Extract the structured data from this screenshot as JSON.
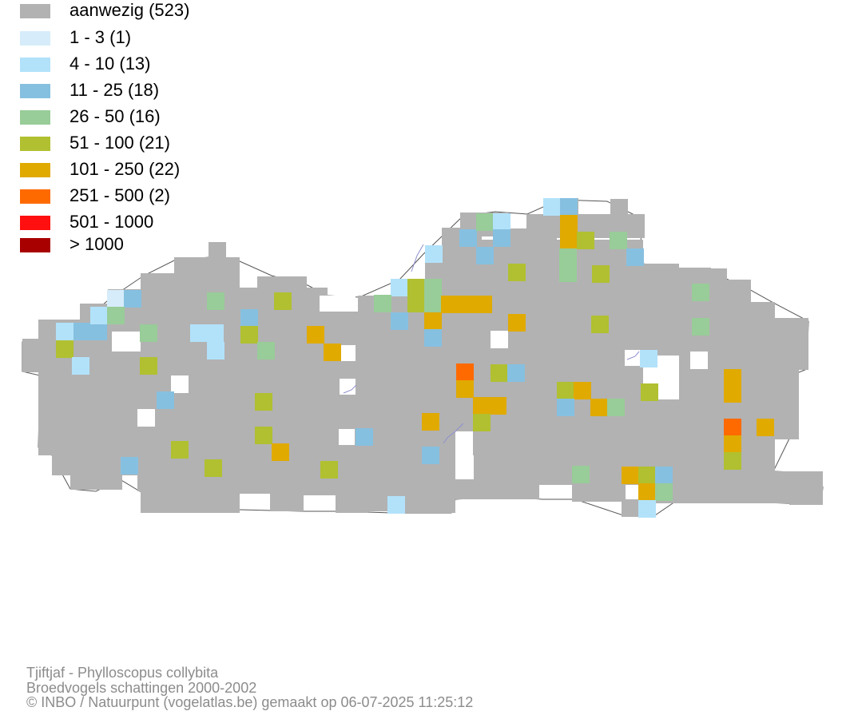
{
  "legend": {
    "items": [
      {
        "label": "aanwezig (523)",
        "color": "#b2b2b2"
      },
      {
        "label": "1 - 3 (1)",
        "color": "#d6ecfa"
      },
      {
        "label": "4 - 10 (13)",
        "color": "#b2e2fa"
      },
      {
        "label": "11 - 25 (18)",
        "color": "#86c0e0"
      },
      {
        "label": "26 - 50 (16)",
        "color": "#98cc98"
      },
      {
        "label": "51 - 100 (21)",
        "color": "#b0c030"
      },
      {
        "label": "101 - 250 (22)",
        "color": "#e0aa00"
      },
      {
        "label": "251 - 500 (2)",
        "color": "#ff6a00"
      },
      {
        "label": "501 - 1000",
        "color": "#ff0f0f"
      },
      {
        "label": "> 1000",
        "color": "#a80000"
      }
    ]
  },
  "map": {
    "base_color": "#b2b2b2",
    "border_color": "#555555",
    "river_color": "#9090d0"
  },
  "footer": {
    "species": "Tjiftjaf - Phylloscopus collybita",
    "subtitle": "Broedvogels schattingen 2000-2002",
    "credit": "© INBO / Natuurpunt (vogelatlas.be) gemaakt op 06-07-2025 11:25:12"
  }
}
